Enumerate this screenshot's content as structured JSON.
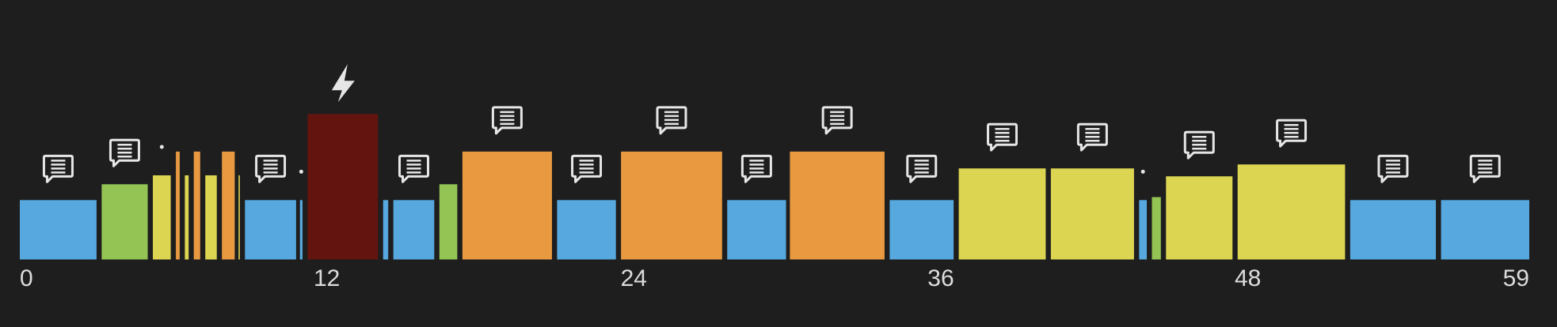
{
  "chart_data": {
    "type": "bar",
    "xlim": [
      0,
      59
    ],
    "xticks": [
      0,
      12,
      24,
      36,
      48,
      59
    ],
    "ylim": [
      0,
      160
    ],
    "segments": [
      {
        "start": 0,
        "end": 3,
        "value": 60,
        "color": "#56a8de",
        "marker": "comment"
      },
      {
        "start": 3.2,
        "end": 5,
        "value": 76,
        "color": "#94c454",
        "marker": "comment"
      },
      {
        "start": 5.2,
        "end": 5.9,
        "value": 85,
        "color": "#dcd552",
        "marker": "dot"
      },
      {
        "start": 6.1,
        "end": 6.25,
        "value": 109,
        "color": "#e99a41"
      },
      {
        "start": 6.45,
        "end": 6.6,
        "value": 85,
        "color": "#dcd552"
      },
      {
        "start": 6.8,
        "end": 7.05,
        "value": 109,
        "color": "#e99a41"
      },
      {
        "start": 7.25,
        "end": 7.7,
        "value": 85,
        "color": "#dcd552"
      },
      {
        "start": 7.9,
        "end": 8.4,
        "value": 109,
        "color": "#e99a41"
      },
      {
        "start": 8.55,
        "end": 8.6,
        "value": 85,
        "color": "#dcd552"
      },
      {
        "start": 8.8,
        "end": 10.8,
        "value": 60,
        "color": "#56a8de",
        "marker": "comment"
      },
      {
        "start": 10.95,
        "end": 11.05,
        "value": 60,
        "color": "#56a8de",
        "marker": "dot"
      },
      {
        "start": 11.25,
        "end": 14,
        "value": 147,
        "color": "#63140f",
        "marker": "bolt"
      },
      {
        "start": 14.2,
        "end": 14.4,
        "value": 60,
        "color": "#56a8de"
      },
      {
        "start": 14.6,
        "end": 16.2,
        "value": 60,
        "color": "#56a8de",
        "marker": "comment"
      },
      {
        "start": 16.4,
        "end": 17.1,
        "value": 76,
        "color": "#94c454"
      },
      {
        "start": 17.3,
        "end": 20.8,
        "value": 109,
        "color": "#e99a41",
        "marker": "comment"
      },
      {
        "start": 21,
        "end": 23.3,
        "value": 60,
        "color": "#56a8de",
        "marker": "comment"
      },
      {
        "start": 23.5,
        "end": 27.45,
        "value": 109,
        "color": "#e99a41",
        "marker": "comment"
      },
      {
        "start": 27.65,
        "end": 29.95,
        "value": 60,
        "color": "#56a8de",
        "marker": "comment"
      },
      {
        "start": 30.1,
        "end": 33.8,
        "value": 109,
        "color": "#e99a41",
        "marker": "comment"
      },
      {
        "start": 34,
        "end": 36.5,
        "value": 60,
        "color": "#56a8de",
        "marker": "comment"
      },
      {
        "start": 36.7,
        "end": 40.1,
        "value": 92,
        "color": "#dcd552",
        "marker": "comment"
      },
      {
        "start": 40.3,
        "end": 43.55,
        "value": 92,
        "color": "#dcd552",
        "marker": "comment"
      },
      {
        "start": 43.75,
        "end": 44.05,
        "value": 60,
        "color": "#56a8de",
        "marker": "dot"
      },
      {
        "start": 44.25,
        "end": 44.6,
        "value": 63,
        "color": "#94c454"
      },
      {
        "start": 44.8,
        "end": 47.4,
        "value": 84,
        "color": "#dcd552",
        "marker": "comment"
      },
      {
        "start": 47.6,
        "end": 51.8,
        "value": 96,
        "color": "#dcd552",
        "marker": "comment"
      },
      {
        "start": 52,
        "end": 55.35,
        "value": 60,
        "color": "#56a8de",
        "marker": "comment"
      },
      {
        "start": 55.55,
        "end": 59,
        "value": 60,
        "color": "#56a8de",
        "marker": "comment"
      }
    ]
  }
}
